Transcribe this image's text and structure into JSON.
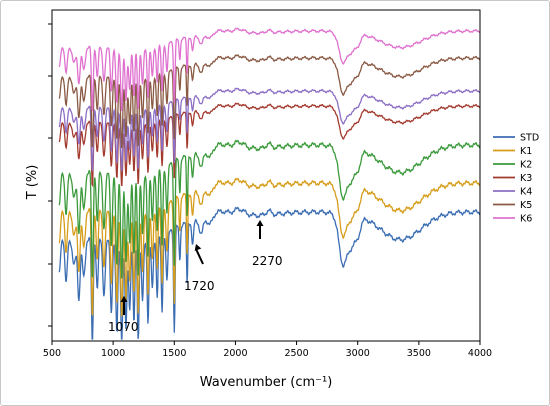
{
  "chart_data": {
    "type": "line",
    "xlabel": "Wavenumber (cm⁻¹)",
    "ylabel": "T (%)",
    "xlim": [
      500,
      4000
    ],
    "x_ticks": [
      500,
      1000,
      1500,
      2000,
      2500,
      3000,
      3500,
      4000
    ],
    "y_ticks_labeled": false,
    "legend_position": "right",
    "grid": false,
    "series": [
      {
        "name": "STD",
        "color": "#3b6db3"
      },
      {
        "name": "K1",
        "color": "#d69d1b"
      },
      {
        "name": "K2",
        "color": "#3c9a3c"
      },
      {
        "name": "K3",
        "color": "#a33a2e"
      },
      {
        "name": "K4",
        "color": "#8c6fc5"
      },
      {
        "name": "K5",
        "color": "#8a5a44"
      },
      {
        "name": "K6",
        "color": "#df72cf"
      }
    ],
    "annotations": [
      {
        "text": "1070",
        "x": 1070
      },
      {
        "text": "1720",
        "x": 1720
      },
      {
        "text": "2270",
        "x": 2270
      }
    ]
  }
}
